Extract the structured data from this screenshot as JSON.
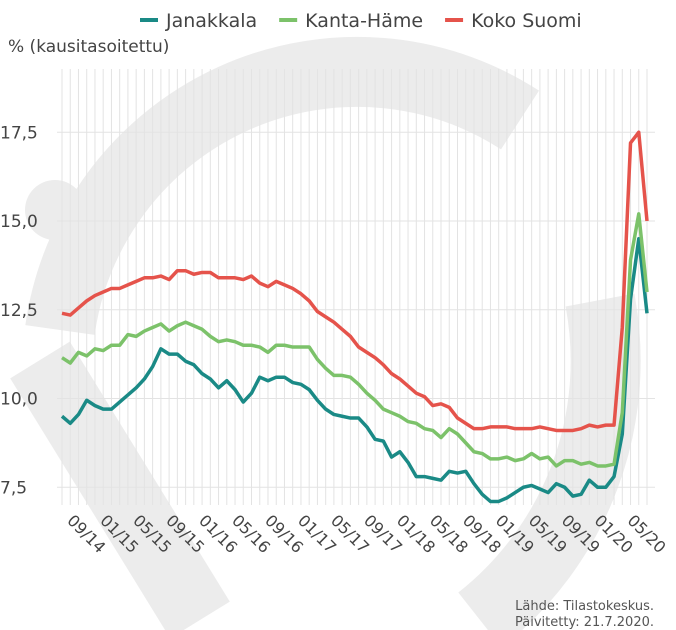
{
  "chart_data": {
    "type": "line",
    "y_label": "% (kausitasoitettu)",
    "categories": [
      null,
      null,
      null,
      "09/14",
      null,
      null,
      null,
      "01/15",
      null,
      null,
      null,
      "05/15",
      null,
      null,
      null,
      "09/15",
      null,
      null,
      null,
      "01/16",
      null,
      null,
      null,
      "05/16",
      null,
      null,
      null,
      "09/16",
      null,
      null,
      null,
      "01/17",
      null,
      null,
      null,
      "05/17",
      null,
      null,
      null,
      "09/17",
      null,
      null,
      null,
      "01/18",
      null,
      null,
      null,
      "05/18",
      null,
      null,
      null,
      "09/18",
      null,
      null,
      null,
      "01/19",
      null,
      null,
      null,
      "05/19",
      null,
      null,
      null,
      "09/19",
      null,
      null,
      null,
      "01/20",
      null,
      null,
      null,
      "05/20"
    ],
    "series": [
      {
        "name": "Janakkala",
        "color": "#1a8a86",
        "values": [
          9.5,
          9.3,
          9.55,
          9.95,
          9.8,
          9.7,
          9.7,
          9.9,
          10.1,
          10.3,
          10.55,
          10.9,
          11.4,
          11.25,
          11.25,
          11.05,
          10.95,
          10.7,
          10.55,
          10.3,
          10.5,
          10.25,
          9.9,
          10.15,
          10.6,
          10.5,
          10.6,
          10.6,
          10.45,
          10.4,
          10.25,
          9.95,
          9.7,
          9.55,
          9.5,
          9.45,
          9.45,
          9.2,
          8.85,
          8.8,
          8.35,
          8.5,
          8.2,
          7.8,
          7.8,
          7.75,
          7.7,
          7.95,
          7.9,
          7.95,
          7.6,
          7.3,
          7.1,
          7.1,
          7.2,
          7.35,
          7.5,
          7.55,
          7.45,
          7.35,
          7.6,
          7.5,
          7.25,
          7.3,
          7.7,
          7.5,
          7.5,
          7.8,
          9.0,
          12.8,
          14.5,
          12.4
        ]
      },
      {
        "name": "Kanta-Häme",
        "color": "#7cc26a",
        "values": [
          11.15,
          11.0,
          11.3,
          11.2,
          11.4,
          11.35,
          11.5,
          11.5,
          11.8,
          11.75,
          11.9,
          12.0,
          12.1,
          11.9,
          12.05,
          12.15,
          12.05,
          11.95,
          11.75,
          11.6,
          11.65,
          11.6,
          11.5,
          11.5,
          11.45,
          11.3,
          11.5,
          11.5,
          11.45,
          11.45,
          11.45,
          11.1,
          10.85,
          10.65,
          10.65,
          10.6,
          10.4,
          10.15,
          9.95,
          9.7,
          9.6,
          9.5,
          9.35,
          9.3,
          9.15,
          9.1,
          8.9,
          9.15,
          9.0,
          8.75,
          8.5,
          8.45,
          8.3,
          8.3,
          8.35,
          8.25,
          8.3,
          8.45,
          8.3,
          8.35,
          8.1,
          8.25,
          8.25,
          8.15,
          8.2,
          8.1,
          8.1,
          8.15,
          9.6,
          13.9,
          15.2,
          13.0
        ]
      },
      {
        "name": "Koko Suomi",
        "color": "#e5534b",
        "values": [
          12.4,
          12.35,
          12.55,
          12.75,
          12.9,
          13.0,
          13.1,
          13.1,
          13.2,
          13.3,
          13.4,
          13.4,
          13.45,
          13.35,
          13.6,
          13.6,
          13.5,
          13.55,
          13.55,
          13.4,
          13.4,
          13.4,
          13.35,
          13.45,
          13.25,
          13.15,
          13.3,
          13.2,
          13.1,
          12.95,
          12.75,
          12.45,
          12.3,
          12.15,
          11.95,
          11.75,
          11.45,
          11.3,
          11.15,
          10.95,
          10.7,
          10.55,
          10.35,
          10.15,
          10.05,
          9.8,
          9.85,
          9.75,
          9.45,
          9.3,
          9.15,
          9.15,
          9.2,
          9.2,
          9.2,
          9.15,
          9.15,
          9.15,
          9.2,
          9.15,
          9.1,
          9.1,
          9.1,
          9.15,
          9.25,
          9.2,
          9.25,
          9.25,
          12.0,
          17.2,
          17.5,
          15.0
        ]
      }
    ],
    "ylim": [
      7,
      19
    ],
    "yticks": [
      {
        "value": 7.5,
        "label": "7,5"
      },
      {
        "value": 10,
        "label": "10,0"
      },
      {
        "value": 12.5,
        "label": "12,5"
      },
      {
        "value": 15,
        "label": "15,0"
      },
      {
        "value": 17.5,
        "label": "17,5"
      }
    ],
    "grid": true,
    "source": "Lähde: Tilastokeskus.",
    "updated": "Päivitetty: 21.7.2020."
  }
}
